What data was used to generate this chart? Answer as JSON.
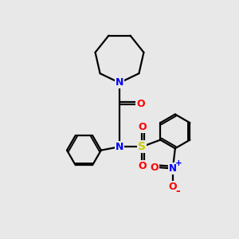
{
  "bg_color": "#e8e8e8",
  "line_color": "#000000",
  "bond_width": 1.6,
  "atom_colors": {
    "N": "#0000ff",
    "O": "#ff0000",
    "S": "#cccc00",
    "C": "#000000"
  },
  "figsize": [
    3.0,
    3.0
  ],
  "dpi": 100
}
